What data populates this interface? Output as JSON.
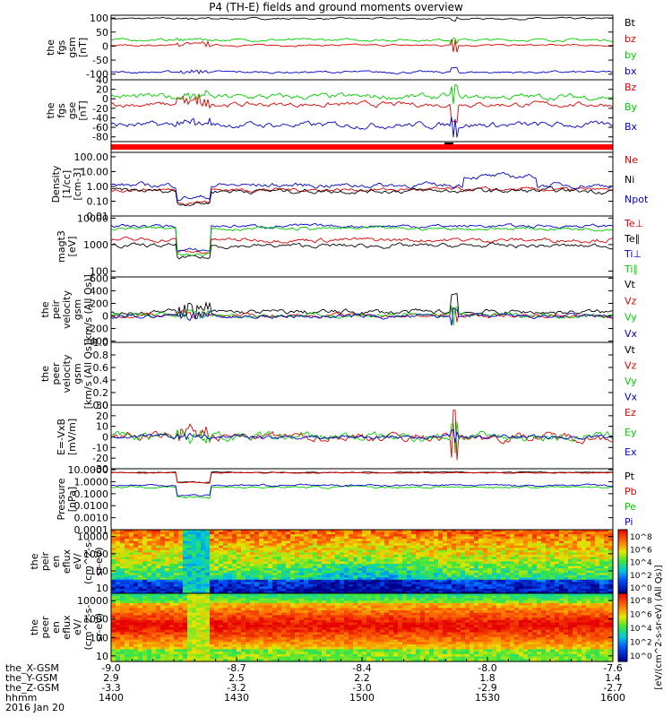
{
  "title": "P4 (TH-E) fields and ground moments overview",
  "colors": {
    "black": "#000000",
    "red": "#dd0000",
    "green": "#00cc00",
    "blue": "#0000cc",
    "spec_bg": "#ff6600"
  },
  "chart_data": [
    {
      "type": "line",
      "panel": "fgs_gsm",
      "ylabel_lines": [
        "the",
        "fgs",
        "gsm",
        "[nT]"
      ],
      "ylim": [
        -120,
        110
      ],
      "yticks": [
        "100",
        "50",
        "0",
        "-50",
        "-100"
      ],
      "yticks_values": [
        100,
        50,
        0,
        -50,
        -100
      ],
      "series": [
        {
          "name": "Bt",
          "color": "#000000",
          "base": 98,
          "noise": 3,
          "spike": 8
        },
        {
          "name": "bz",
          "color": "#dd0000",
          "base": 3,
          "noise": 3,
          "spike": 22
        },
        {
          "name": "by",
          "color": "#00cc00",
          "base": 22,
          "noise": 4,
          "spike": 10
        },
        {
          "name": "bx",
          "color": "#0000cc",
          "base": -93,
          "noise": 4,
          "spike": 15
        }
      ]
    },
    {
      "type": "line",
      "panel": "fgs_gse",
      "ylabel_lines": [
        "the",
        "fgs",
        "gse",
        "[nT]"
      ],
      "ylim": [
        -90,
        40
      ],
      "yticks": [
        "40",
        "20",
        "0",
        "-20",
        "-40",
        "-60",
        "-80"
      ],
      "yticks_values": [
        40,
        20,
        0,
        -20,
        -40,
        -60,
        -80
      ],
      "series": [
        {
          "name": "Bz",
          "color": "#dd0000",
          "base": -12,
          "noise": 5,
          "spike": 35
        },
        {
          "name": "By",
          "color": "#00cc00",
          "base": 4,
          "noise": 6,
          "spike": 20
        },
        {
          "name": "Bx",
          "color": "#0000cc",
          "base": -55,
          "noise": 6,
          "spike": 20
        }
      ]
    },
    {
      "type": "bar_strip",
      "panel": "quality_flag",
      "color": "#ff0000"
    },
    {
      "type": "line",
      "panel": "density",
      "log": true,
      "ylabel_lines": [
        "Density",
        "[1/cc]",
        "[cm-3]"
      ],
      "ylim": [
        0.01,
        200
      ],
      "yticks": [
        "100.00",
        "10.00",
        "1.00",
        "0.10",
        "0.01"
      ],
      "yticks_values": [
        100,
        10,
        1,
        0.1,
        0.01
      ],
      "series": [
        {
          "name": "Ne",
          "color": "#dd0000",
          "base": 0.6,
          "noise": 0.15
        },
        {
          "name": "Ni",
          "color": "#000000",
          "base": 0.5,
          "noise": 0.2
        },
        {
          "name": "Npot",
          "color": "#0000cc",
          "base": 1.2,
          "noise": 0.2
        }
      ]
    },
    {
      "type": "line",
      "panel": "temperature",
      "log": true,
      "ylabel_lines": [
        "magt3",
        "[eV]"
      ],
      "ylim": [
        60,
        12000
      ],
      "yticks": [
        "10000",
        "1000",
        "100"
      ],
      "yticks_values": [
        10000,
        1000,
        100
      ],
      "series": [
        {
          "name": "Te⊥",
          "color": "#dd0000",
          "base": 1500,
          "noise": 0.1
        },
        {
          "name": "Te∥",
          "color": "#000000",
          "base": 900,
          "noise": 0.1
        },
        {
          "name": "Ti⊥",
          "color": "#0000cc",
          "base": 5000,
          "noise": 0.08
        },
        {
          "name": "Ti∥",
          "color": "#00cc00",
          "base": 4000,
          "noise": 0.08
        }
      ]
    },
    {
      "type": "line",
      "panel": "peir_velocity",
      "ylabel_lines": [
        "the",
        "peir",
        "velocity",
        "gsm",
        "[km/s (All Qs)]"
      ],
      "ylim": [
        -420,
        620
      ],
      "yticks": [
        "600",
        "400",
        "200",
        "0",
        "-200",
        "-400"
      ],
      "yticks_values": [
        600,
        400,
        200,
        0,
        -200,
        -400
      ],
      "series": [
        {
          "name": "Vt",
          "color": "#000000",
          "base": 60,
          "noise": 40,
          "spike": 300
        },
        {
          "name": "Vz",
          "color": "#dd0000",
          "base": 5,
          "noise": 30,
          "spike": 120
        },
        {
          "name": "Vy",
          "color": "#00cc00",
          "base": 10,
          "noise": 35,
          "spike": 150
        },
        {
          "name": "Vx",
          "color": "#0000cc",
          "base": -10,
          "noise": 35,
          "spike": 150
        }
      ]
    },
    {
      "type": "line",
      "panel": "peer_velocity",
      "ylabel_lines": [
        "the",
        "peer",
        "velocity",
        "gsm",
        "[km/s (All Qs)]"
      ],
      "ylim": [
        0,
        1.0
      ],
      "yticks": [
        "1.0",
        "0.8",
        "0.6",
        "0.4",
        "0.2",
        "0.0"
      ],
      "yticks_values": [
        1.0,
        0.8,
        0.6,
        0.4,
        0.2,
        0.0
      ],
      "series": [
        {
          "name": "Vt",
          "color": "#000000",
          "empty": true
        },
        {
          "name": "Vz",
          "color": "#dd0000",
          "empty": true
        },
        {
          "name": "Vy",
          "color": "#00cc00",
          "empty": true
        },
        {
          "name": "Vx",
          "color": "#0000cc",
          "empty": true
        }
      ]
    },
    {
      "type": "line",
      "panel": "efield",
      "ylabel_lines": [
        "E=-VxB",
        "[mV/m]"
      ],
      "ylim": [
        -30,
        30
      ],
      "yticks": [
        "30",
        "20",
        "10",
        "0",
        "-10",
        "-20",
        "-30"
      ],
      "yticks_values": [
        30,
        20,
        10,
        0,
        -10,
        -20,
        -30
      ],
      "series": [
        {
          "name": "Ez",
          "color": "#dd0000",
          "base": 0,
          "noise": 4,
          "spike": 22
        },
        {
          "name": "Ey",
          "color": "#00cc00",
          "base": 0,
          "noise": 4,
          "spike": 15
        },
        {
          "name": "Ex",
          "color": "#0000cc",
          "base": 0,
          "noise": 2,
          "spike": 6
        }
      ]
    },
    {
      "type": "line",
      "panel": "pressure",
      "log": true,
      "ylabel_lines": [
        "Pressure",
        "[nPa]"
      ],
      "ylim": [
        0.0001,
        12
      ],
      "yticks": [
        "10.0000",
        "1.0000",
        "0.1000",
        "0.0100",
        "0.0010",
        "0.0001"
      ],
      "yticks_values": [
        10,
        1,
        0.1,
        0.01,
        0.001,
        0.0001
      ],
      "series": [
        {
          "name": "Pt",
          "color": "#000000",
          "base": 6,
          "noise": 0.05
        },
        {
          "name": "Pb",
          "color": "#dd0000",
          "base": 5.5,
          "noise": 0.05
        },
        {
          "name": "Pe",
          "color": "#00cc00",
          "base": 0.35,
          "noise": 0.1
        },
        {
          "name": "Pi",
          "color": "#0000cc",
          "base": 0.5,
          "noise": 0.1
        }
      ]
    },
    {
      "type": "heatmap",
      "panel": "peir_en_eflux",
      "log": true,
      "ylabel_lines": [
        "the",
        "peir",
        "en",
        "eflux",
        "eV/",
        "(cm^2-s-",
        "sr-eV)"
      ],
      "ylim": [
        5,
        25000
      ],
      "yticks": [
        "10000",
        "1000",
        "100",
        "10"
      ],
      "yticks_values": [
        10000,
        1000,
        100,
        10
      ]
    },
    {
      "type": "heatmap",
      "panel": "peer_en_eflux",
      "log": true,
      "ylabel_lines": [
        "the",
        "peer",
        "en",
        "eflux",
        "eV/",
        "(cm^2-s-",
        "sr-eV)"
      ],
      "ylim": [
        5,
        25000
      ],
      "yticks": [
        "10000",
        "1000",
        "100",
        "10"
      ],
      "yticks_values": [
        10000,
        1000,
        100,
        10
      ]
    }
  ],
  "colorbar": {
    "ticks": [
      "10^8",
      "10^6",
      "10^4",
      "10^2",
      "10^0"
    ],
    "label": "[eV/(cm^2-s-sr-eV) (All Qs)]"
  },
  "x_axis": {
    "rows": [
      {
        "label": "the_X-GSM",
        "values": [
          "-9.0",
          "-8.7",
          "-8.4",
          "-8.0",
          "-7.6"
        ]
      },
      {
        "label": "the_Y-GSM",
        "values": [
          "2.9",
          "2.5",
          "2.2",
          "1.8",
          "1.4"
        ]
      },
      {
        "label": "the_Z-GSM",
        "values": [
          "-3.3",
          "-3.2",
          "-3.0",
          "-2.9",
          "-2.7"
        ]
      },
      {
        "label": "hhmm",
        "values": [
          "1400",
          "1430",
          "1500",
          "1530",
          "1600"
        ]
      }
    ],
    "date": "2016 Jan 20"
  }
}
